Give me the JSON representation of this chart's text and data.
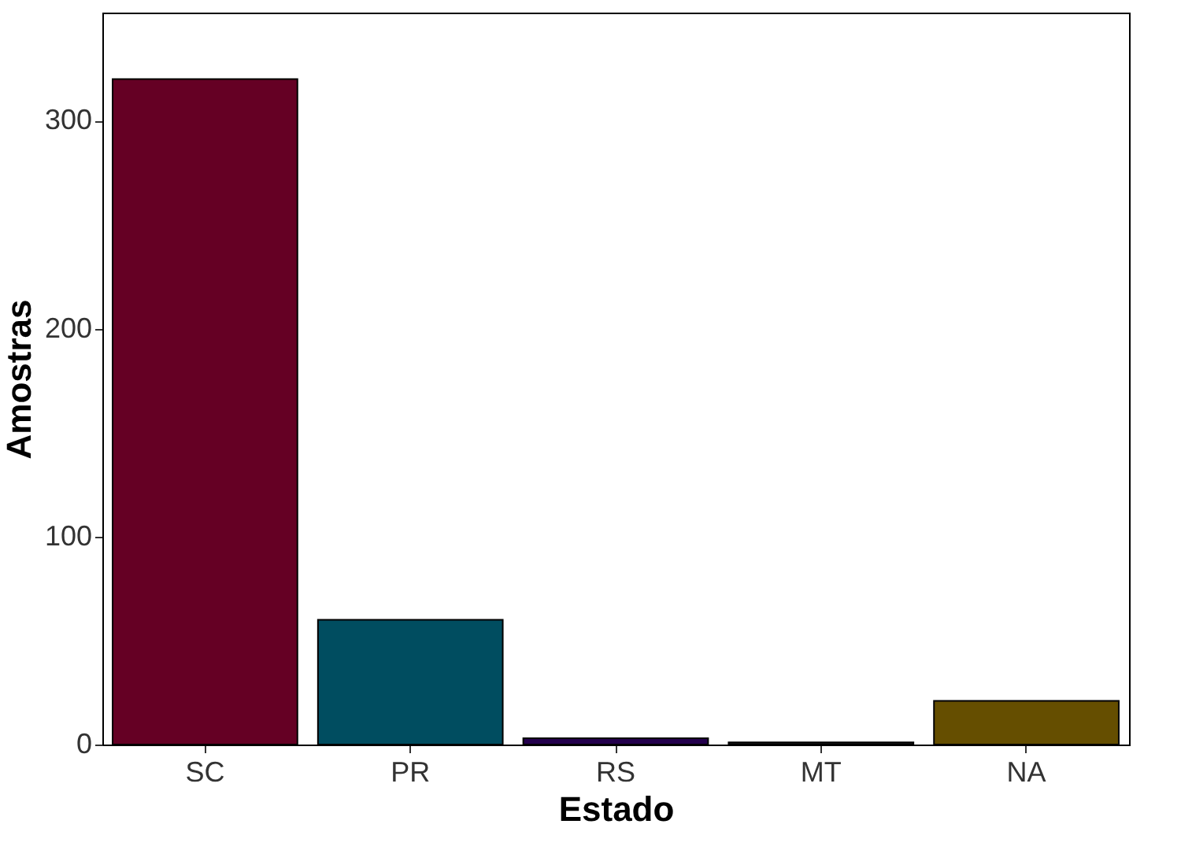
{
  "chart_data": {
    "type": "bar",
    "xlabel": "Estado",
    "ylabel": "Amostras",
    "categories": [
      "SC",
      "PR",
      "RS",
      "MT",
      "NA"
    ],
    "values": [
      320,
      60,
      3,
      1,
      21
    ],
    "colors": [
      "#650024",
      "#004d60",
      "#24004d",
      "#1a1a1a",
      "#654e00"
    ],
    "ylim": [
      0,
      352
    ],
    "yticks": [
      0,
      100,
      200,
      300
    ],
    "grid": false
  }
}
